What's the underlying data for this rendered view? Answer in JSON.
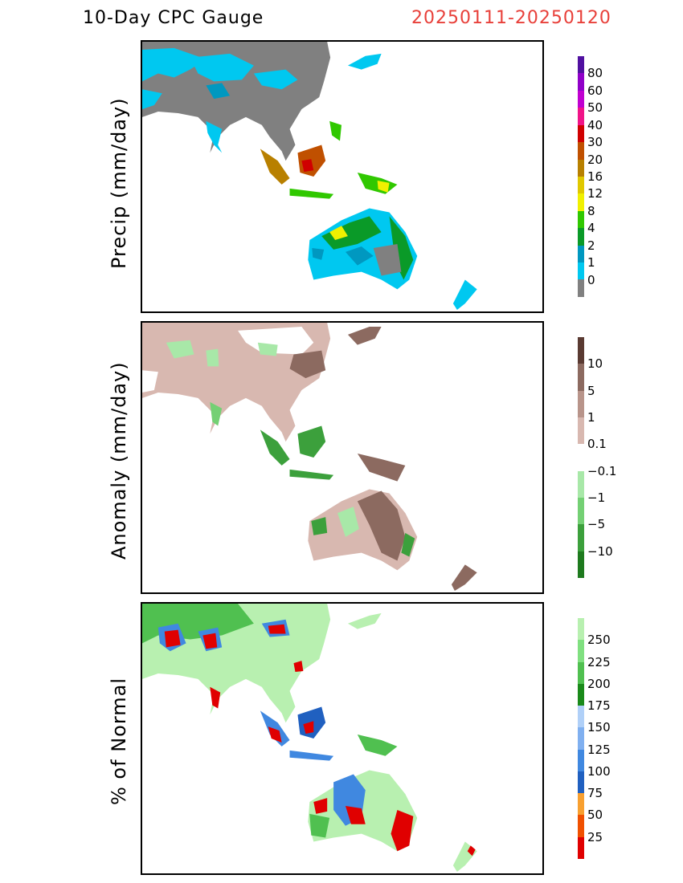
{
  "header": {
    "title": "10-Day CPC Gauge",
    "dates": "20250111-20250120",
    "date_color": "#e8403a"
  },
  "panels": [
    {
      "ylabel": "Precip (mm/day)",
      "legend": {
        "colors": [
          "#808080",
          "#00c8f0",
          "#0098c0",
          "#0a9a28",
          "#30c800",
          "#f0f000",
          "#e0c800",
          "#b88000",
          "#c05000",
          "#d00000",
          "#f01488",
          "#c000d0",
          "#9000c8",
          "#5010a0"
        ],
        "labels": [
          "80",
          "60",
          "50",
          "40",
          "30",
          "20",
          "16",
          "12",
          "8",
          "4",
          "2",
          "1",
          "0"
        ]
      }
    },
    {
      "ylabel": "Anomaly (mm/day)",
      "legend": {
        "colors": [
          "#1e7a1e",
          "#3ca03c",
          "#74d074",
          "#a8e8a8",
          "#ffffff",
          "#d8b8b0",
          "#b8948a",
          "#8c6a60",
          "#5a3a32"
        ],
        "labels": [
          "10",
          "5",
          "1",
          "0.1",
          "−0.1",
          "−1",
          "−5",
          "−10"
        ]
      }
    },
    {
      "ylabel": "% of Normal",
      "legend": {
        "colors": [
          "#e00000",
          "#f05000",
          "#f8a030",
          "#2060c0",
          "#4088e0",
          "#80b0f0",
          "#b0d0f8",
          "#1a8a1a",
          "#50c050",
          "#80e080",
          "#b8f0b0"
        ],
        "labels": [
          "250",
          "225",
          "200",
          "175",
          "150",
          "125",
          "100",
          "75",
          "50",
          "25"
        ]
      }
    }
  ]
}
